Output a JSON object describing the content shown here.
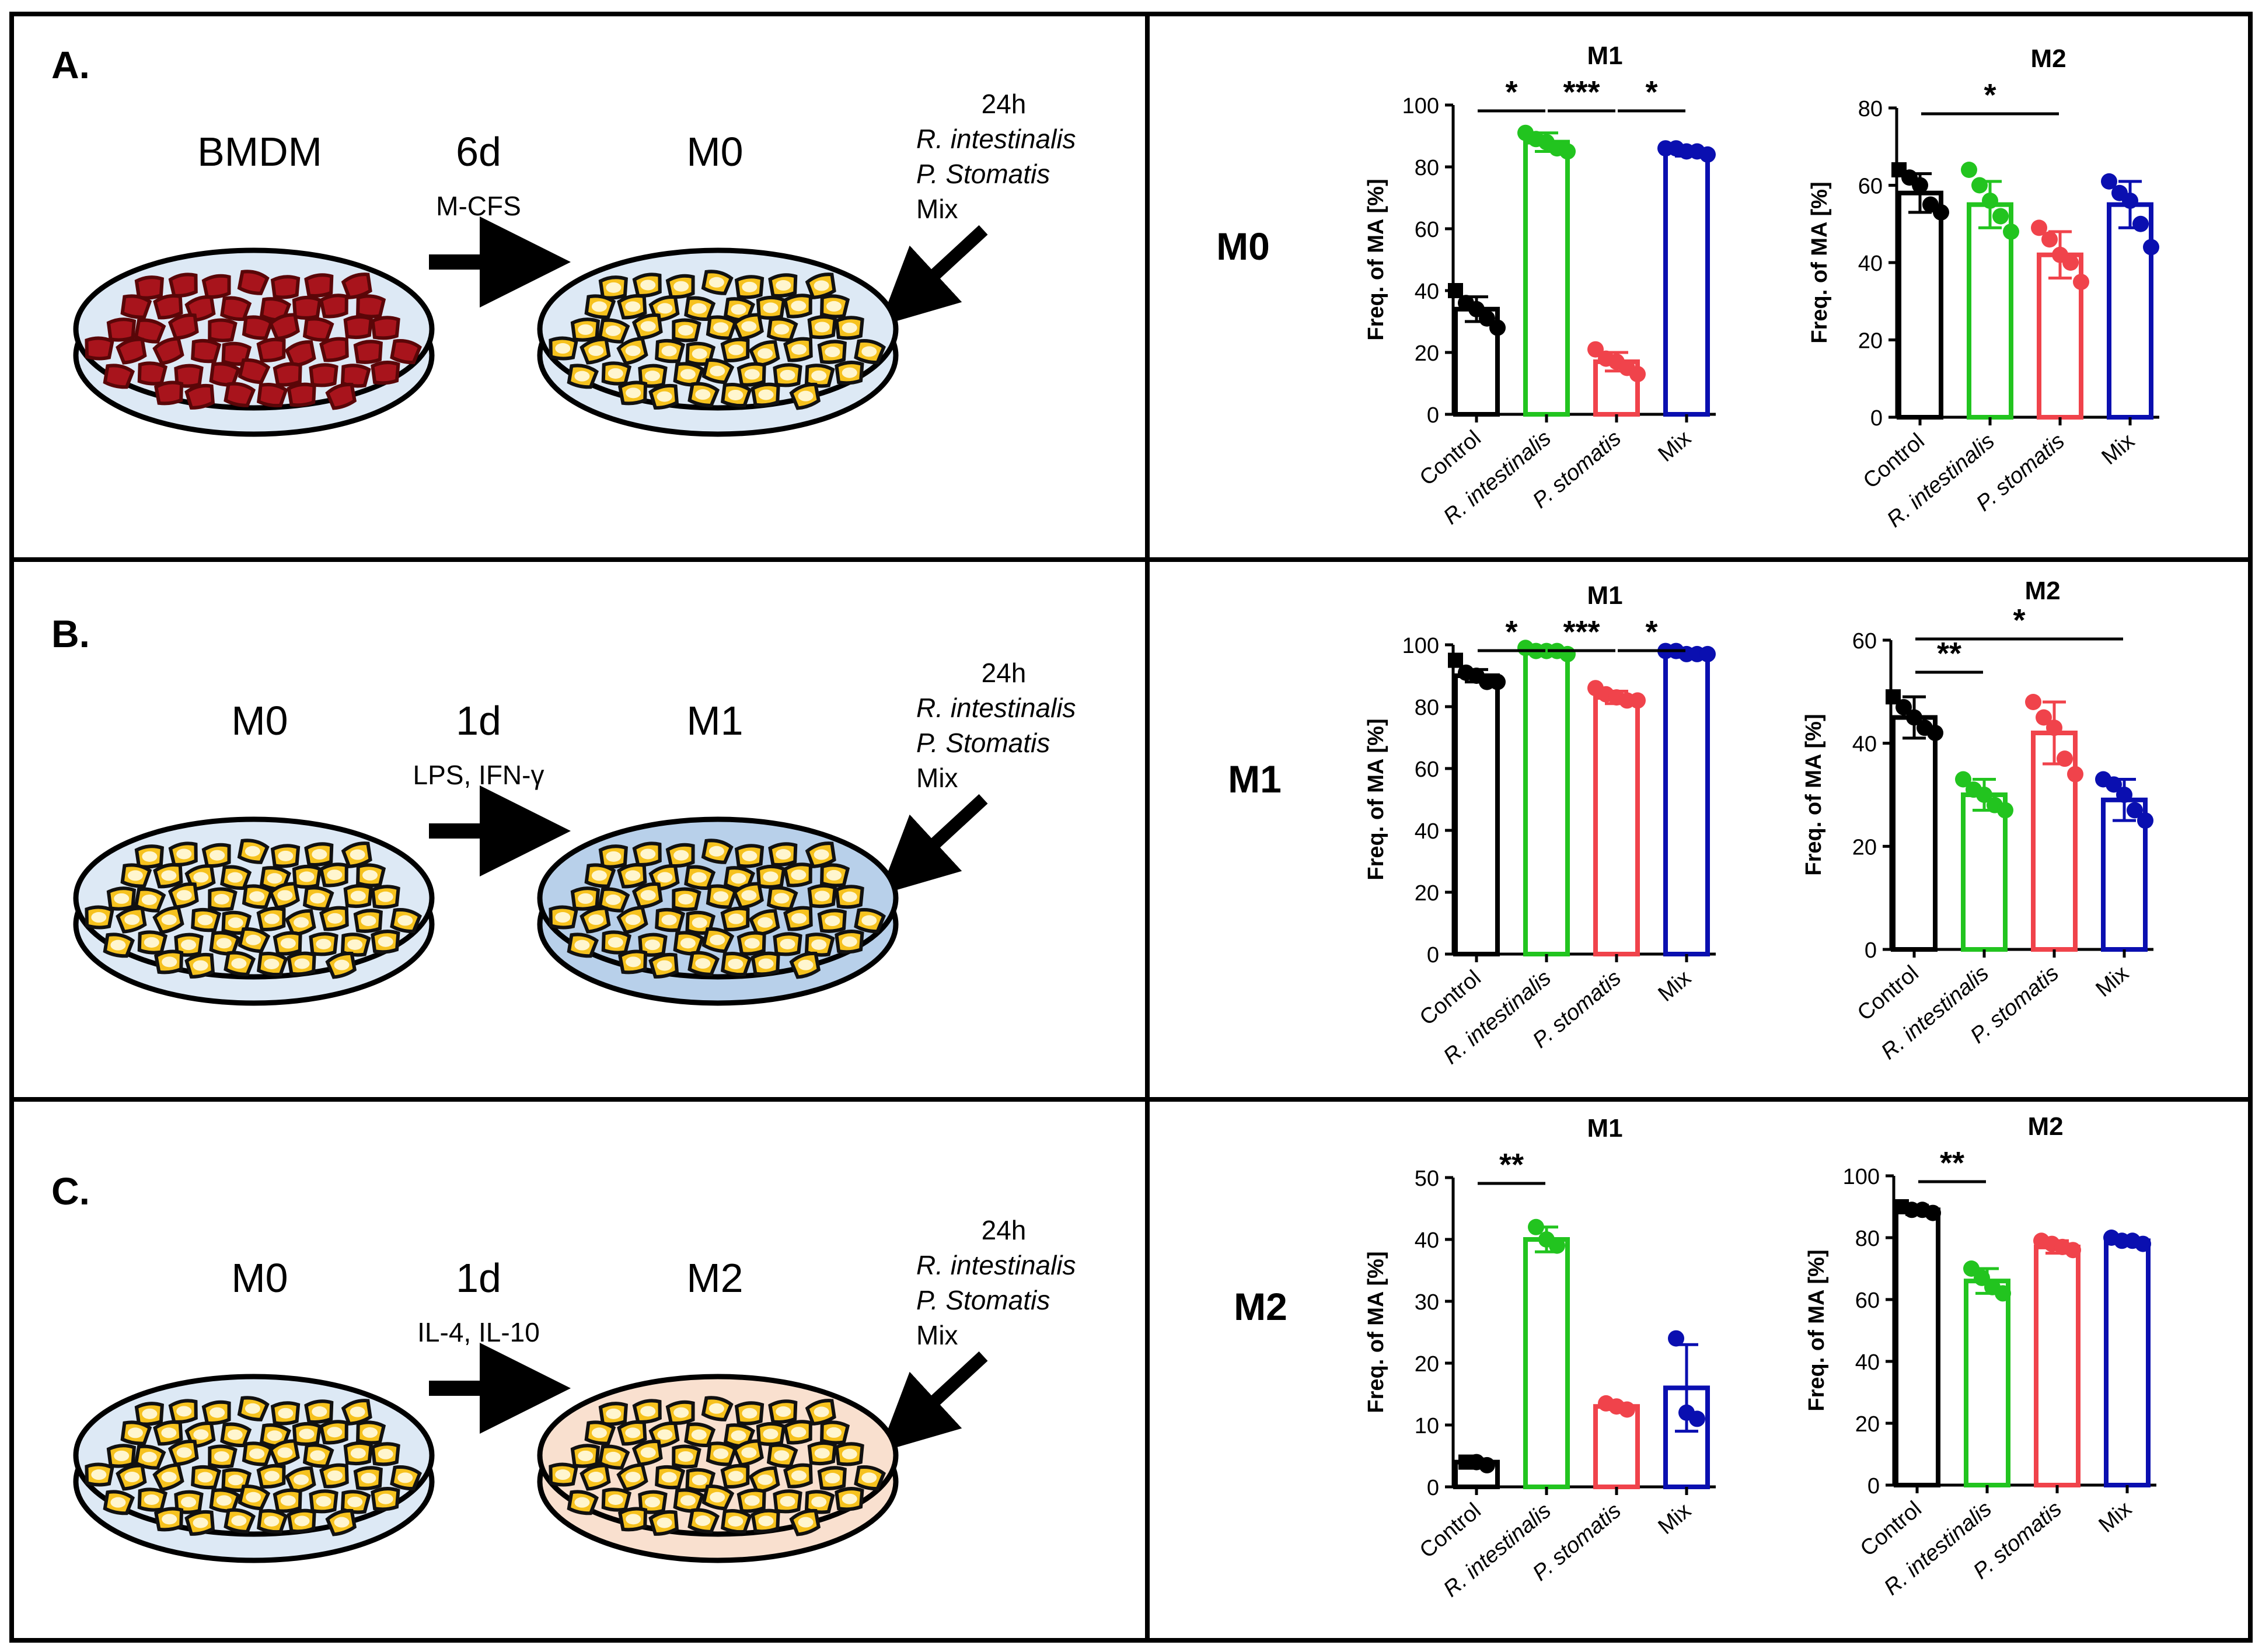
{
  "panels": [
    {
      "letter": "A.",
      "row_label": "M0",
      "start_label": "BMDM",
      "time_label": "6d",
      "agent_label": "M-CFS",
      "end_label": "M0",
      "start_cells": "red",
      "end_dish_color": "#dde9f5",
      "treatment": {
        "time": "24h",
        "line1": "R. intestinalis",
        "line2": "P. Stomatis",
        "line3": "Mix"
      }
    },
    {
      "letter": "B.",
      "row_label": "M1",
      "start_label": "M0",
      "time_label": "1d",
      "agent_label": "LPS, IFN-γ",
      "end_label": "M1",
      "start_cells": "yellow",
      "end_dish_color": "#b8d0ea",
      "treatment": {
        "time": "24h",
        "line1": "R. intestinalis",
        "line2": "P. Stomatis",
        "line3": "Mix"
      }
    },
    {
      "letter": "C.",
      "row_label": "M2",
      "start_label": "M0",
      "time_label": "1d",
      "agent_label": "IL-4, IL-10",
      "end_label": "M2",
      "start_cells": "yellow",
      "end_dish_color": "#f9e0cf",
      "treatment": {
        "time": "24h",
        "line1": "R. intestinalis",
        "line2": "P. Stomatis",
        "line3": "Mix"
      }
    }
  ],
  "chart_data": [
    {
      "id": "M0-M1",
      "type": "bar",
      "title": "M1",
      "ylabel": "Freq. of MA [%]",
      "categories": [
        "Control",
        "R. intestinalis",
        "P. stomatis",
        "Mix"
      ],
      "values": [
        34,
        88,
        17,
        85
      ],
      "errors": [
        4,
        3,
        3,
        1.5
      ],
      "ylim": [
        0,
        100
      ],
      "yticks": [
        0,
        20,
        40,
        60,
        80,
        100
      ],
      "points": [
        [
          40,
          36,
          34,
          31,
          28
        ],
        [
          91,
          89,
          88,
          86,
          85
        ],
        [
          21,
          18,
          17,
          15,
          13
        ],
        [
          86,
          86,
          85,
          85,
          84
        ]
      ],
      "sig": [
        {
          "from": 0,
          "to": 1,
          "label": "*",
          "level": 0
        },
        {
          "from": 1,
          "to": 2,
          "label": "***",
          "level": 0
        },
        {
          "from": 2,
          "to": 3,
          "label": "*",
          "level": 0
        }
      ]
    },
    {
      "id": "M0-M2",
      "type": "bar",
      "title": "M2",
      "ylabel": "Freq. of MA [%]",
      "categories": [
        "Control",
        "R. intestinalis",
        "P. stomatis",
        "Mix"
      ],
      "values": [
        58,
        55,
        42,
        55
      ],
      "errors": [
        5,
        6,
        6,
        6
      ],
      "ylim": [
        0,
        80
      ],
      "yticks": [
        0,
        20,
        40,
        60,
        80
      ],
      "points": [
        [
          64,
          62,
          60,
          55,
          53
        ],
        [
          64,
          60,
          56,
          52,
          48
        ],
        [
          49,
          46,
          42,
          40,
          35
        ],
        [
          61,
          58,
          56,
          50,
          44
        ]
      ],
      "sig": [
        {
          "from": 0,
          "to": 2,
          "label": "*",
          "level": 0
        }
      ]
    },
    {
      "id": "M1-M1",
      "type": "bar",
      "title": "M1",
      "ylabel": "Freq. of MA [%]",
      "categories": [
        "Control",
        "R. intestinalis",
        "P. stomatis",
        "Mix"
      ],
      "values": [
        90,
        98,
        83,
        97
      ],
      "errors": [
        2,
        1,
        2,
        1
      ],
      "ylim": [
        0,
        100
      ],
      "yticks": [
        0,
        20,
        40,
        60,
        80,
        100
      ],
      "points": [
        [
          95,
          91,
          90,
          88,
          88
        ],
        [
          99,
          98,
          98,
          98,
          97
        ],
        [
          86,
          84,
          83,
          82,
          82
        ],
        [
          98,
          98,
          97,
          97,
          97
        ]
      ],
      "sig": [
        {
          "from": 0,
          "to": 1,
          "label": "*",
          "level": 0
        },
        {
          "from": 1,
          "to": 2,
          "label": "***",
          "level": 0
        },
        {
          "from": 2,
          "to": 3,
          "label": "*",
          "level": 0
        }
      ]
    },
    {
      "id": "M1-M2",
      "type": "bar",
      "title": "M2",
      "ylabel": "Freq. of MA [%]",
      "categories": [
        "Control",
        "R. intestinalis",
        "P. stomatis",
        "Mix"
      ],
      "values": [
        45,
        30,
        42,
        29
      ],
      "errors": [
        4,
        3,
        6,
        4
      ],
      "ylim": [
        0,
        60
      ],
      "yticks": [
        0,
        20,
        40,
        60
      ],
      "points": [
        [
          49,
          47,
          45,
          43,
          42
        ],
        [
          33,
          31,
          30,
          28,
          27
        ],
        [
          48,
          45,
          43,
          37,
          34
        ],
        [
          33,
          32,
          30,
          27,
          25
        ]
      ],
      "sig": [
        {
          "from": 0,
          "to": 1,
          "label": "**",
          "level": 0
        },
        {
          "from": 0,
          "to": 3,
          "label": "*",
          "level": 1
        }
      ]
    },
    {
      "id": "M2-M1",
      "type": "bar",
      "title": "M1",
      "ylabel": "Freq. of MA [%]",
      "categories": [
        "Control",
        "R. intestinalis",
        "P. stomatis",
        "Mix"
      ],
      "values": [
        4,
        40,
        13,
        16
      ],
      "errors": [
        0.5,
        2,
        0.5,
        7
      ],
      "ylim": [
        0,
        50
      ],
      "yticks": [
        0,
        10,
        20,
        30,
        40,
        50
      ],
      "points": [
        [
          4,
          4,
          3.5
        ],
        [
          42,
          40,
          39
        ],
        [
          13.5,
          13,
          12.5
        ],
        [
          24,
          12,
          11
        ]
      ],
      "sig": [
        {
          "from": 0,
          "to": 1,
          "label": "**",
          "level": 0
        }
      ]
    },
    {
      "id": "M2-M2",
      "type": "bar",
      "title": "M2",
      "ylabel": "Freq. of MA [%]",
      "categories": [
        "Control",
        "R. intestinalis",
        "P. stomatis",
        "Mix"
      ],
      "values": [
        89,
        66,
        77,
        79
      ],
      "errors": [
        1.5,
        4,
        2,
        1
      ],
      "ylim": [
        0,
        100
      ],
      "yticks": [
        0,
        20,
        40,
        60,
        80,
        100
      ],
      "points": [
        [
          90,
          89,
          89,
          88
        ],
        [
          70,
          67,
          64,
          62
        ],
        [
          79,
          78,
          77,
          76
        ],
        [
          80,
          79,
          79,
          78
        ]
      ],
      "sig": [
        {
          "from": 0,
          "to": 1,
          "label": "**",
          "level": 0
        }
      ]
    }
  ],
  "colors": {
    "Control": "#000000",
    "R. intestinalis": "#22c41f",
    "P. stomatis": "#f0434b",
    "Mix": "#0a0fb0",
    "cell_red": "#a8141c",
    "cell_yellow": "#f6c21e",
    "dish_blue": "#dde9f5"
  }
}
